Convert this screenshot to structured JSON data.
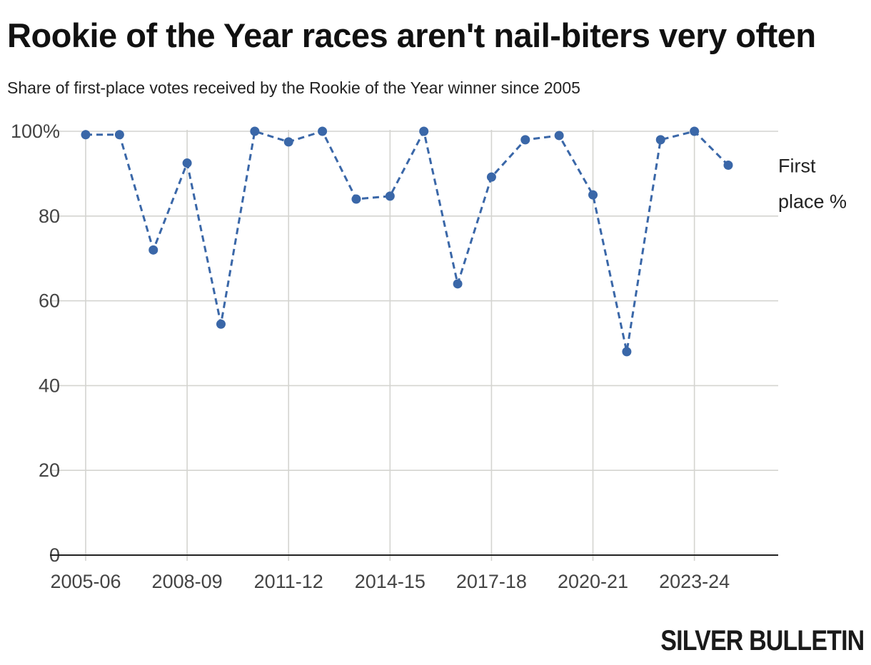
{
  "chart_data": {
    "type": "line",
    "title": "Rookie of the Year races aren't nail-biters very often",
    "subtitle": "Share of first-place votes received by the Rookie of the Year winner since 2005",
    "x": [
      "2005-06",
      "2006-07",
      "2007-08",
      "2008-09",
      "2009-10",
      "2010-11",
      "2011-12",
      "2012-13",
      "2013-14",
      "2014-15",
      "2015-16",
      "2016-17",
      "2017-18",
      "2018-19",
      "2019-20",
      "2020-21",
      "2021-22",
      "2022-23",
      "2023-24",
      "2024-25"
    ],
    "x_tick_labels": [
      "2005-06",
      "2008-09",
      "2011-12",
      "2014-15",
      "2017-18",
      "2020-21",
      "2023-24"
    ],
    "y_tick_labels": [
      "0",
      "20",
      "40",
      "60",
      "80",
      "100%"
    ],
    "ylim": [
      0,
      100
    ],
    "y_ticks": [
      0,
      20,
      40,
      60,
      80,
      100
    ],
    "grid": true,
    "legend_placement": "right",
    "series": [
      {
        "name": "First place %",
        "line_style": "dashed",
        "color": "#3a67a8",
        "values": [
          99.2,
          99.2,
          72,
          92.5,
          54.5,
          100,
          97.5,
          100,
          84,
          84.7,
          100,
          64,
          89.2,
          98,
          99,
          85,
          48,
          98,
          100,
          92
        ]
      }
    ],
    "legend_lines": [
      "First",
      "place %"
    ]
  },
  "branding": {
    "text": "SILVER BULLETIN"
  },
  "colors": {
    "series": "#3a67a8",
    "grid": "#d4d4d0",
    "axis": "#222222"
  }
}
